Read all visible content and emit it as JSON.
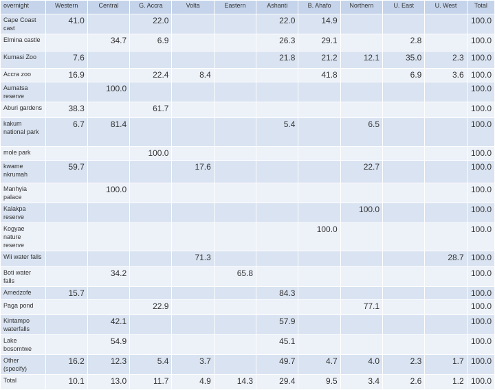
{
  "table": {
    "header": [
      "overnight",
      "Western",
      "Central",
      "G. Accra",
      "Volta",
      "Eastern",
      "Ashanti",
      "B. Ahafo",
      "Northern",
      "U. East",
      "U. West",
      "Total"
    ],
    "rows": [
      [
        "Cape Coast cast",
        "41.0",
        null,
        "22.0",
        null,
        null,
        "22.0",
        "14.9",
        null,
        null,
        null,
        "100.0"
      ],
      [
        "Elmina castle",
        null,
        "34.7",
        "6.9",
        null,
        null,
        "26.3",
        "29.1",
        null,
        "2.8",
        null,
        "100.0"
      ],
      [
        "Kumasi Zoo",
        "7.6",
        null,
        null,
        null,
        null,
        "21.8",
        "21.2",
        "12.1",
        "35.0",
        "2.3",
        "100.0"
      ],
      [
        "Accra zoo",
        "16.9",
        null,
        "22.4",
        "8.4",
        null,
        null,
        "41.8",
        null,
        "6.9",
        "3.6",
        "100.0"
      ],
      [
        "Aumatsa reserve",
        null,
        "100.0",
        null,
        null,
        null,
        null,
        null,
        null,
        null,
        null,
        "100.0"
      ],
      [
        "Aburi gardens",
        "38.3",
        null,
        "61.7",
        null,
        null,
        null,
        null,
        null,
        null,
        null,
        "100.0"
      ],
      [
        "kakum national park",
        "6.7",
        "81.4",
        null,
        null,
        null,
        "5.4",
        null,
        "6.5",
        null,
        null,
        "100.0"
      ],
      [
        "mole park",
        null,
        null,
        "100.0",
        null,
        null,
        null,
        null,
        null,
        null,
        null,
        "100.0"
      ],
      [
        "kwame nkrumah",
        "59.7",
        null,
        null,
        "17.6",
        null,
        null,
        null,
        "22.7",
        null,
        null,
        "100.0"
      ],
      [
        "Manhyia palace",
        null,
        "100.0",
        null,
        null,
        null,
        null,
        null,
        null,
        null,
        null,
        "100.0"
      ],
      [
        "Kalakpa reserve",
        null,
        null,
        null,
        null,
        null,
        null,
        null,
        "100.0",
        null,
        null,
        "100.0"
      ],
      [
        "Kogyae nature reserve",
        null,
        null,
        null,
        null,
        null,
        null,
        "100.0",
        null,
        null,
        null,
        "100.0"
      ],
      [
        "Wli water falls",
        null,
        null,
        null,
        "71.3",
        null,
        null,
        null,
        null,
        null,
        "28.7",
        "100.0"
      ],
      [
        "Boti water falls",
        null,
        "34.2",
        null,
        null,
        "65.8",
        null,
        null,
        null,
        null,
        null,
        "100.0"
      ],
      [
        "Amedzofe",
        "15.7",
        null,
        null,
        null,
        null,
        "84.3",
        null,
        null,
        null,
        null,
        "100.0"
      ],
      [
        "Paga pond",
        null,
        null,
        "22.9",
        null,
        null,
        null,
        null,
        "77.1",
        null,
        null,
        "100.0"
      ],
      [
        "Kintampo waterfalls",
        null,
        "42.1",
        null,
        null,
        null,
        "57.9",
        null,
        null,
        null,
        null,
        "100.0"
      ],
      [
        "Lake bosomtwe",
        null,
        "54.9",
        null,
        null,
        null,
        "45.1",
        null,
        null,
        null,
        null,
        "100.0"
      ],
      [
        "Other (specify)",
        "16.2",
        "12.3",
        "5.4",
        "3.7",
        null,
        "49.7",
        "4.7",
        "4.0",
        "2.3",
        "1.7",
        "100.0"
      ],
      [
        "Total",
        "10.1",
        "13.0",
        "11.7",
        "4.9",
        "14.3",
        "29.4",
        "9.5",
        "3.4",
        "2.6",
        "1.2",
        "100.0"
      ]
    ]
  }
}
